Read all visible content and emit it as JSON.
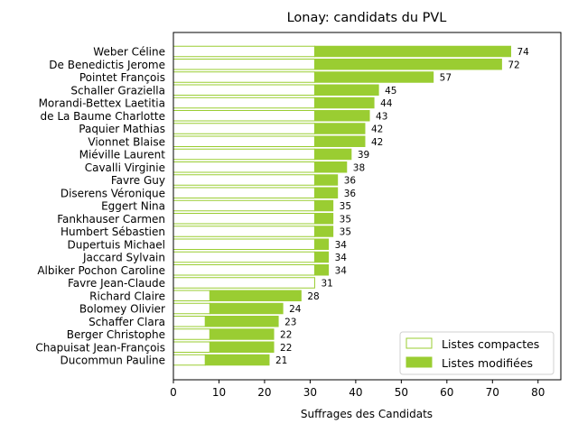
{
  "chart_data": {
    "type": "bar",
    "orientation": "horizontal",
    "stacked": true,
    "title": "Lonay: candidats du PVL",
    "xlabel": "Suffrages des Candidats",
    "ylabel": "",
    "xlim": [
      0,
      85
    ],
    "xticks": [
      0,
      10,
      20,
      30,
      40,
      50,
      60,
      70,
      80
    ],
    "categories": [
      "Weber Céline",
      "De Benedictis Jerome",
      "Pointet François",
      "Schaller Graziella",
      "Morandi-Bettex Laetitia",
      "de La Baume Charlotte",
      "Paquier Mathias",
      "Vionnet Blaise",
      "Miéville Laurent",
      "Cavalli Virginie",
      "Favre Guy",
      "Diserens Véronique",
      "Eggert Nina",
      "Fankhauser Carmen",
      "Humbert Sébastien",
      "Dupertuis Michael",
      "Jaccard Sylvain",
      "Albiker Pochon Caroline",
      "Favre Jean-Claude",
      "Richard Claire",
      "Bolomey Olivier",
      "Schaffer Clara",
      "Berger Christophe",
      "Chapuisat Jean-François",
      "Ducommun Pauline"
    ],
    "series": [
      {
        "name": "Listes compactes",
        "color": "#ffffff",
        "edge_color": "#9acd32",
        "values": [
          31,
          31,
          31,
          31,
          31,
          31,
          31,
          31,
          31,
          31,
          31,
          31,
          31,
          31,
          31,
          31,
          31,
          31,
          31,
          8,
          8,
          7,
          8,
          8,
          7
        ]
      },
      {
        "name": "Listes modifiées",
        "color": "#9acd32",
        "edge_color": "#9acd32",
        "values": [
          43,
          41,
          26,
          14,
          13,
          12,
          11,
          11,
          8,
          7,
          5,
          5,
          4,
          4,
          4,
          3,
          3,
          3,
          0,
          20,
          16,
          16,
          14,
          14,
          14
        ]
      }
    ],
    "totals": [
      74,
      72,
      57,
      45,
      44,
      43,
      42,
      42,
      39,
      38,
      36,
      36,
      35,
      35,
      35,
      34,
      34,
      34,
      31,
      28,
      24,
      23,
      22,
      22,
      21
    ],
    "legend_position": "lower right",
    "grid": false
  }
}
